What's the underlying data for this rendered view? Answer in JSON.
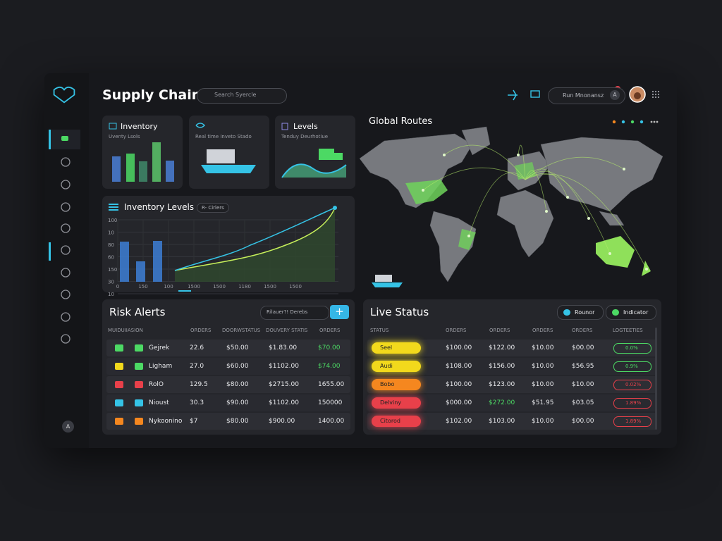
{
  "header": {
    "title": "Supply Chains",
    "search_placeholder": "Search Syercle",
    "user_label": "Run Mnonansz",
    "badge": "A"
  },
  "cards": [
    {
      "title": "Inventory",
      "subtitle": "Uventy Lsols"
    },
    {
      "subtitle": "Real time Inveto Stado"
    },
    {
      "title": "Levels",
      "subtitle": "Tenduy Deurhotiue"
    }
  ],
  "inventory_levels": {
    "title": "Inventory Levels",
    "filter": "R- Cirlers",
    "y_labels": [
      "100",
      "10",
      "80",
      "60",
      "150",
      "30",
      "10"
    ],
    "x_labels": [
      "0",
      "150",
      "100",
      "1500",
      "1500",
      "1180",
      "1500",
      "1500"
    ]
  },
  "global_routes": {
    "title": "Global Routes"
  },
  "risk_alerts": {
    "title": "Risk Alerts",
    "filter": "Rilauer?! Derebs",
    "columns": [
      "MUIDUIIASION",
      "ORDERS",
      "DOORWSTATUS",
      "DOUVERY STATIS",
      "ORDERS"
    ],
    "rows": [
      {
        "name": "Gejrek",
        "cells": [
          "22.6",
          "$50.00",
          "$1.83.00",
          "$70.00"
        ]
      },
      {
        "name": "Ligham",
        "cells": [
          "27.0",
          "$60.00",
          "$1102.00",
          "$74.00"
        ]
      },
      {
        "name": "RolO",
        "cells": [
          "129.5",
          "$80.00",
          "$2715.00",
          "1655.00"
        ]
      },
      {
        "name": "Nioust",
        "cells": [
          "30.3",
          "$90.00",
          "$1102.00",
          "150000"
        ]
      },
      {
        "name": "Nykoonino",
        "cells": [
          "$7",
          "$80.00",
          "$900.00",
          "1400.00"
        ]
      }
    ]
  },
  "live_status": {
    "title": "Live Status",
    "buttons": [
      "Rounor",
      "Indicator"
    ],
    "columns": [
      "STATUS",
      "ORDERS",
      "ORDERS",
      "ORDERS",
      "ORDERS",
      "LOGTEETIES"
    ],
    "rows": [
      {
        "status": "Seel",
        "color": "#f2d91c",
        "cells": [
          "$100.00",
          "$122.00",
          "$10.00",
          "$00.00"
        ],
        "rate": "0.0%",
        "rate_color": "#4cd964"
      },
      {
        "status": "Audi",
        "color": "#f2d91c",
        "cells": [
          "$108.00",
          "$156.00",
          "$10.00",
          "$56.95"
        ],
        "rate": "0.9%",
        "rate_color": "#4cd964"
      },
      {
        "status": "Bobo",
        "color": "#f5871f",
        "cells": [
          "$100.00",
          "$123.00",
          "$10.00",
          "$10.00"
        ],
        "rate": "0.02%",
        "rate_color": "#e8404a"
      },
      {
        "status": "Delviny",
        "color": "#e8404a",
        "cells": [
          "$000.00",
          "$272.00",
          "$51.95",
          "$03.05"
        ],
        "rate": "1.89%",
        "rate_color": "#e8404a"
      },
      {
        "status": "Citorod",
        "color": "#e8404a",
        "cells": [
          "$102.00",
          "$103.00",
          "$10.00",
          "$00.00"
        ],
        "rate": "1.89%",
        "rate_color": "#e8404a"
      }
    ]
  }
}
